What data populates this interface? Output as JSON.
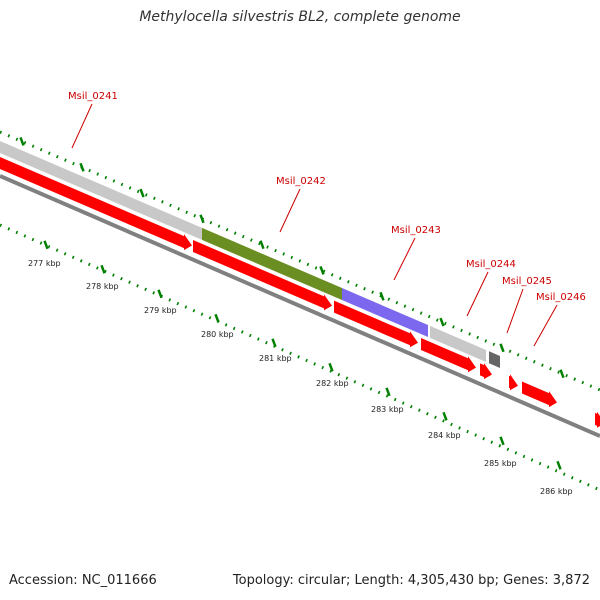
{
  "title": "Methylocella silvestris BL2, complete genome",
  "footer": {
    "accession": "Accession: NC_011666",
    "summary": "Topology: circular; Length: 4,305,430 bp; Genes: 3,872"
  },
  "colors": {
    "cds_forward": "#ff0000",
    "gene_default": "#c8c8c8",
    "gene_msil0242": "#6b8e23",
    "gene_msil0243": "#7b68ee",
    "gene_msil0245": "#666666",
    "backbone": "#808080",
    "tick": "#008000",
    "label": "#cc0000"
  },
  "ruler": {
    "ticks": [
      "277 kbp",
      "278 kbp",
      "279 kbp",
      "280 kbp",
      "281 kbp",
      "282 kbp",
      "283 kbp",
      "284 kbp",
      "285 kbp",
      "286 kbp"
    ]
  },
  "genes": [
    {
      "name": "Msil_0241",
      "color": "#c8c8c8"
    },
    {
      "name": "Msil_0242",
      "color": "#6b8e23"
    },
    {
      "name": "Msil_0243",
      "color": "#7b68ee"
    },
    {
      "name": "Msil_0244",
      "color": "#c8c8c8"
    },
    {
      "name": "Msil_0245",
      "color": "#666666"
    },
    {
      "name": "Msil_0246",
      "color": "#c8c8c8"
    }
  ]
}
